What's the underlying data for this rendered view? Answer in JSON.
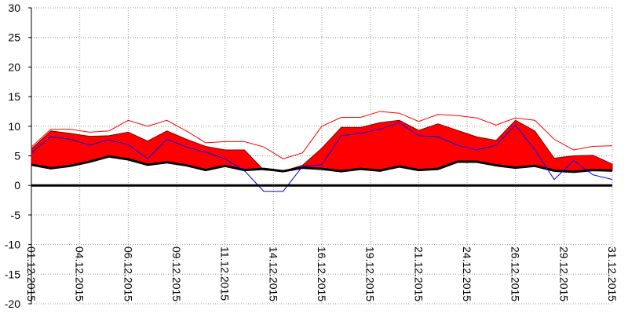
{
  "chart_data": {
    "type": "line",
    "x": [
      1,
      2,
      3,
      4,
      5,
      6,
      7,
      8,
      9,
      10,
      11,
      12,
      13,
      14,
      15,
      16,
      17,
      18,
      19,
      20,
      21,
      22,
      23,
      24,
      25,
      26,
      27,
      28,
      29,
      30,
      31
    ],
    "xlim": [
      1,
      31
    ],
    "xticks": [
      {
        "value": 1,
        "label": "01.12.2015"
      },
      {
        "value": 3.5,
        "label": "04.12.2015"
      },
      {
        "value": 6,
        "label": "06.12.2015"
      },
      {
        "value": 8.5,
        "label": "09.12.2015"
      },
      {
        "value": 11,
        "label": "11.12.2015"
      },
      {
        "value": 13.5,
        "label": "14.12.2015"
      },
      {
        "value": 16,
        "label": "16.12.2015"
      },
      {
        "value": 18.5,
        "label": "19.12.2015"
      },
      {
        "value": 21,
        "label": "21.12.2015"
      },
      {
        "value": 23.5,
        "label": "24.12.2015"
      },
      {
        "value": 26,
        "label": "26.12.2015"
      },
      {
        "value": 28.5,
        "label": "29.12.2015"
      },
      {
        "value": 31,
        "label": "31.12.2015"
      }
    ],
    "ylim": [
      -20,
      30
    ],
    "yticks": [
      -20,
      -15,
      -10,
      -5,
      0,
      5,
      10,
      15,
      20,
      25,
      30
    ],
    "grid": true,
    "zero_line": true,
    "series": [
      {
        "color": "#ff0000",
        "fill_to": 1,
        "values": [
          6.2,
          9.2,
          8.8,
          8.3,
          8.4,
          9.0,
          7.5,
          9.2,
          7.8,
          6.6,
          6.0,
          6.0,
          2.6,
          2.4,
          3.4,
          6.3,
          9.8,
          9.8,
          10.6,
          11.0,
          9.3,
          10.4,
          9.3,
          8.2,
          7.6,
          11.0,
          9.2,
          4.6,
          5.0,
          5.1,
          3.6
        ]
      },
      {
        "color": "#000000",
        "width": 3,
        "values": [
          3.5,
          2.9,
          3.3,
          4.0,
          4.9,
          4.4,
          3.5,
          3.9,
          3.4,
          2.6,
          3.3,
          2.6,
          2.8,
          2.4,
          3.0,
          2.8,
          2.4,
          2.8,
          2.5,
          3.2,
          2.6,
          2.8,
          4.0,
          4.0,
          3.4,
          3.0,
          3.3,
          2.5,
          2.3,
          2.6,
          2.5
        ]
      },
      {
        "color": "#ff0000",
        "width": 1,
        "values": [
          6.5,
          9.5,
          9.5,
          9.0,
          9.2,
          11.0,
          10.0,
          11.0,
          9.2,
          7.2,
          7.4,
          7.4,
          6.5,
          4.5,
          5.5,
          10.0,
          11.5,
          11.5,
          12.5,
          12.2,
          10.8,
          12.0,
          11.8,
          11.4,
          10.2,
          11.4,
          11.0,
          7.8,
          6.0,
          6.6,
          6.7
        ]
      },
      {
        "color": "#0000ff",
        "width": 1,
        "values": [
          5.5,
          8.2,
          7.8,
          6.8,
          7.7,
          6.9,
          4.5,
          7.8,
          6.5,
          5.6,
          4.5,
          2.5,
          -1,
          -1,
          3.2,
          3.5,
          8.4,
          8.8,
          9.5,
          10.6,
          8.4,
          8.2,
          6.8,
          6.0,
          6.8,
          10.2,
          6.0,
          1.0,
          4.2,
          1.8,
          1.0
        ]
      }
    ]
  }
}
